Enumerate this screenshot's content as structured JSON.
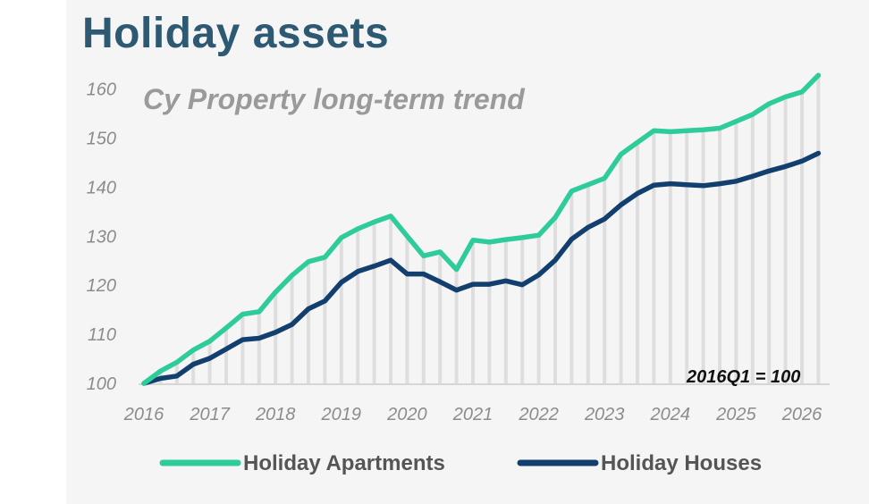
{
  "header": {
    "title": "Holiday assets"
  },
  "chart_data": {
    "type": "line",
    "title": "Holiday assets",
    "subtitle": "Cy Property long-term trend",
    "annotation": "2016Q1 = 100",
    "xlabel": "",
    "ylabel": "",
    "x_ticks": [
      "2016",
      "2017",
      "2018",
      "2019",
      "2020",
      "2021",
      "2022",
      "2023",
      "2024",
      "2025",
      "2026"
    ],
    "y_ticks": [
      100,
      110,
      120,
      130,
      140,
      150,
      160
    ],
    "ylim": [
      100,
      162
    ],
    "grid": "vertical bars per quarter",
    "legend_position": "bottom",
    "x": [
      2016.0,
      2016.25,
      2016.5,
      2016.75,
      2017.0,
      2017.25,
      2017.5,
      2017.75,
      2018.0,
      2018.25,
      2018.5,
      2018.75,
      2019.0,
      2019.25,
      2019.5,
      2019.75,
      2020.0,
      2020.25,
      2020.5,
      2020.75,
      2021.0,
      2021.25,
      2021.5,
      2021.75,
      2022.0,
      2022.25,
      2022.5,
      2022.75,
      2023.0,
      2023.25,
      2023.5,
      2023.75,
      2024.0,
      2024.25,
      2024.5,
      2024.75,
      2025.0,
      2025.25,
      2025.5,
      2025.75,
      2026.0,
      2026.25
    ],
    "series": [
      {
        "name": "Holiday Apartments",
        "color": "#2ecc9a",
        "values": [
          100,
          102.5,
          104.3,
          106.8,
          108.6,
          111.3,
          114.1,
          114.6,
          118.6,
          122,
          124.8,
          125.7,
          129.7,
          131.5,
          132.9,
          134.1,
          130,
          126,
          126.8,
          123.2,
          129.2,
          128.8,
          129.3,
          129.7,
          130.2,
          133.8,
          139.2,
          140.5,
          141.8,
          146.7,
          149.1,
          151.5,
          151.3,
          151.5,
          151.7,
          152,
          153.4,
          154.8,
          157,
          158.4,
          159.4,
          162.8
        ]
      },
      {
        "name": "Holiday Houses",
        "color": "#123f6e",
        "values": [
          100,
          101,
          101.5,
          103.9,
          105.1,
          107,
          108.9,
          109.2,
          110.4,
          112,
          115.2,
          116.8,
          120.6,
          122.8,
          123.9,
          125.1,
          122.3,
          122.3,
          120.7,
          119,
          120.2,
          120.2,
          120.9,
          120.1,
          122.1,
          125.1,
          129.4,
          131.8,
          133.5,
          136.4,
          138.7,
          140.4,
          140.7,
          140.5,
          140.3,
          140.7,
          141.2,
          142.2,
          143.3,
          144.2,
          145.3,
          146.9
        ]
      }
    ]
  }
}
